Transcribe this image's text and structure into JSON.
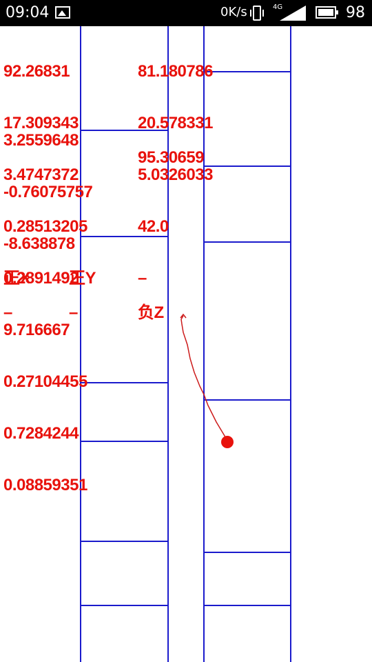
{
  "status_bar": {
    "time": "09:04",
    "network_speed": "0K/s",
    "network_type": "4G",
    "battery_level": "98"
  },
  "readouts": {
    "group1": [
      "92.26831",
      "17.309343",
      "3.4747372"
    ],
    "group1_right": [
      "81.180786",
      "20.578331",
      "5.0326033"
    ],
    "group2": [
      "3.2559648",
      "-0.76075757",
      "-8.638878"
    ],
    "group2_right": "95.30659",
    "group3": [
      "0.28513205",
      "0.2891492",
      "9.716667"
    ],
    "group3_right": "42.0",
    "direction_row1": [
      "正X",
      "正Y",
      "–"
    ],
    "direction_row2": [
      "–",
      "–",
      "负Z"
    ],
    "group4": [
      "0.27104455",
      "0.7284244",
      "0.08859351"
    ]
  },
  "colors": {
    "text": "#e8120c",
    "lines": "#1a1acc",
    "ball": "#e8120c"
  },
  "icons": [
    "image-icon",
    "vibrate-icon",
    "signal-icon",
    "battery-icon"
  ]
}
